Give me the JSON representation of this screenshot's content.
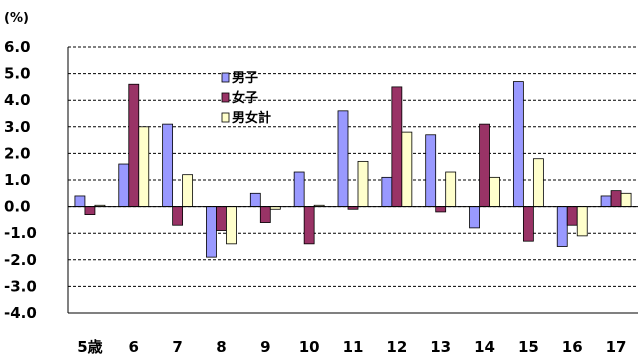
{
  "chart_data": {
    "type": "bar",
    "title": "",
    "unit_label": "(%)",
    "xlabel": "",
    "ylabel": "",
    "categories": [
      "5歳",
      "6",
      "7",
      "8",
      "9",
      "10",
      "11",
      "12",
      "13",
      "14",
      "15",
      "16",
      "17"
    ],
    "series": [
      {
        "name": "男子",
        "color": "#9999FF",
        "values": [
          0.4,
          1.6,
          3.1,
          -1.9,
          0.5,
          1.3,
          3.6,
          1.1,
          2.7,
          -0.8,
          4.7,
          -1.5,
          0.4
        ]
      },
      {
        "name": "女子",
        "color": "#993366",
        "values": [
          -0.3,
          4.6,
          -0.7,
          -0.9,
          -0.6,
          -1.4,
          -0.1,
          4.5,
          -0.2,
          3.1,
          -1.3,
          -0.7,
          0.6
        ]
      },
      {
        "name": "男女計",
        "color": "#FFFFCC",
        "values": [
          0.05,
          3.0,
          1.2,
          -1.4,
          -0.1,
          0.05,
          1.7,
          2.8,
          1.3,
          1.1,
          1.8,
          -1.1,
          0.5
        ]
      }
    ],
    "ylim": [
      -4.0,
      6.0
    ],
    "yticks": [
      "6.0",
      "5.0",
      "4.0",
      "3.0",
      "2.0",
      "1.0",
      "0.0",
      "-1.0",
      "-2.0",
      "-3.0",
      "-4.0"
    ],
    "grid": true,
    "legend_position": "top-center"
  }
}
